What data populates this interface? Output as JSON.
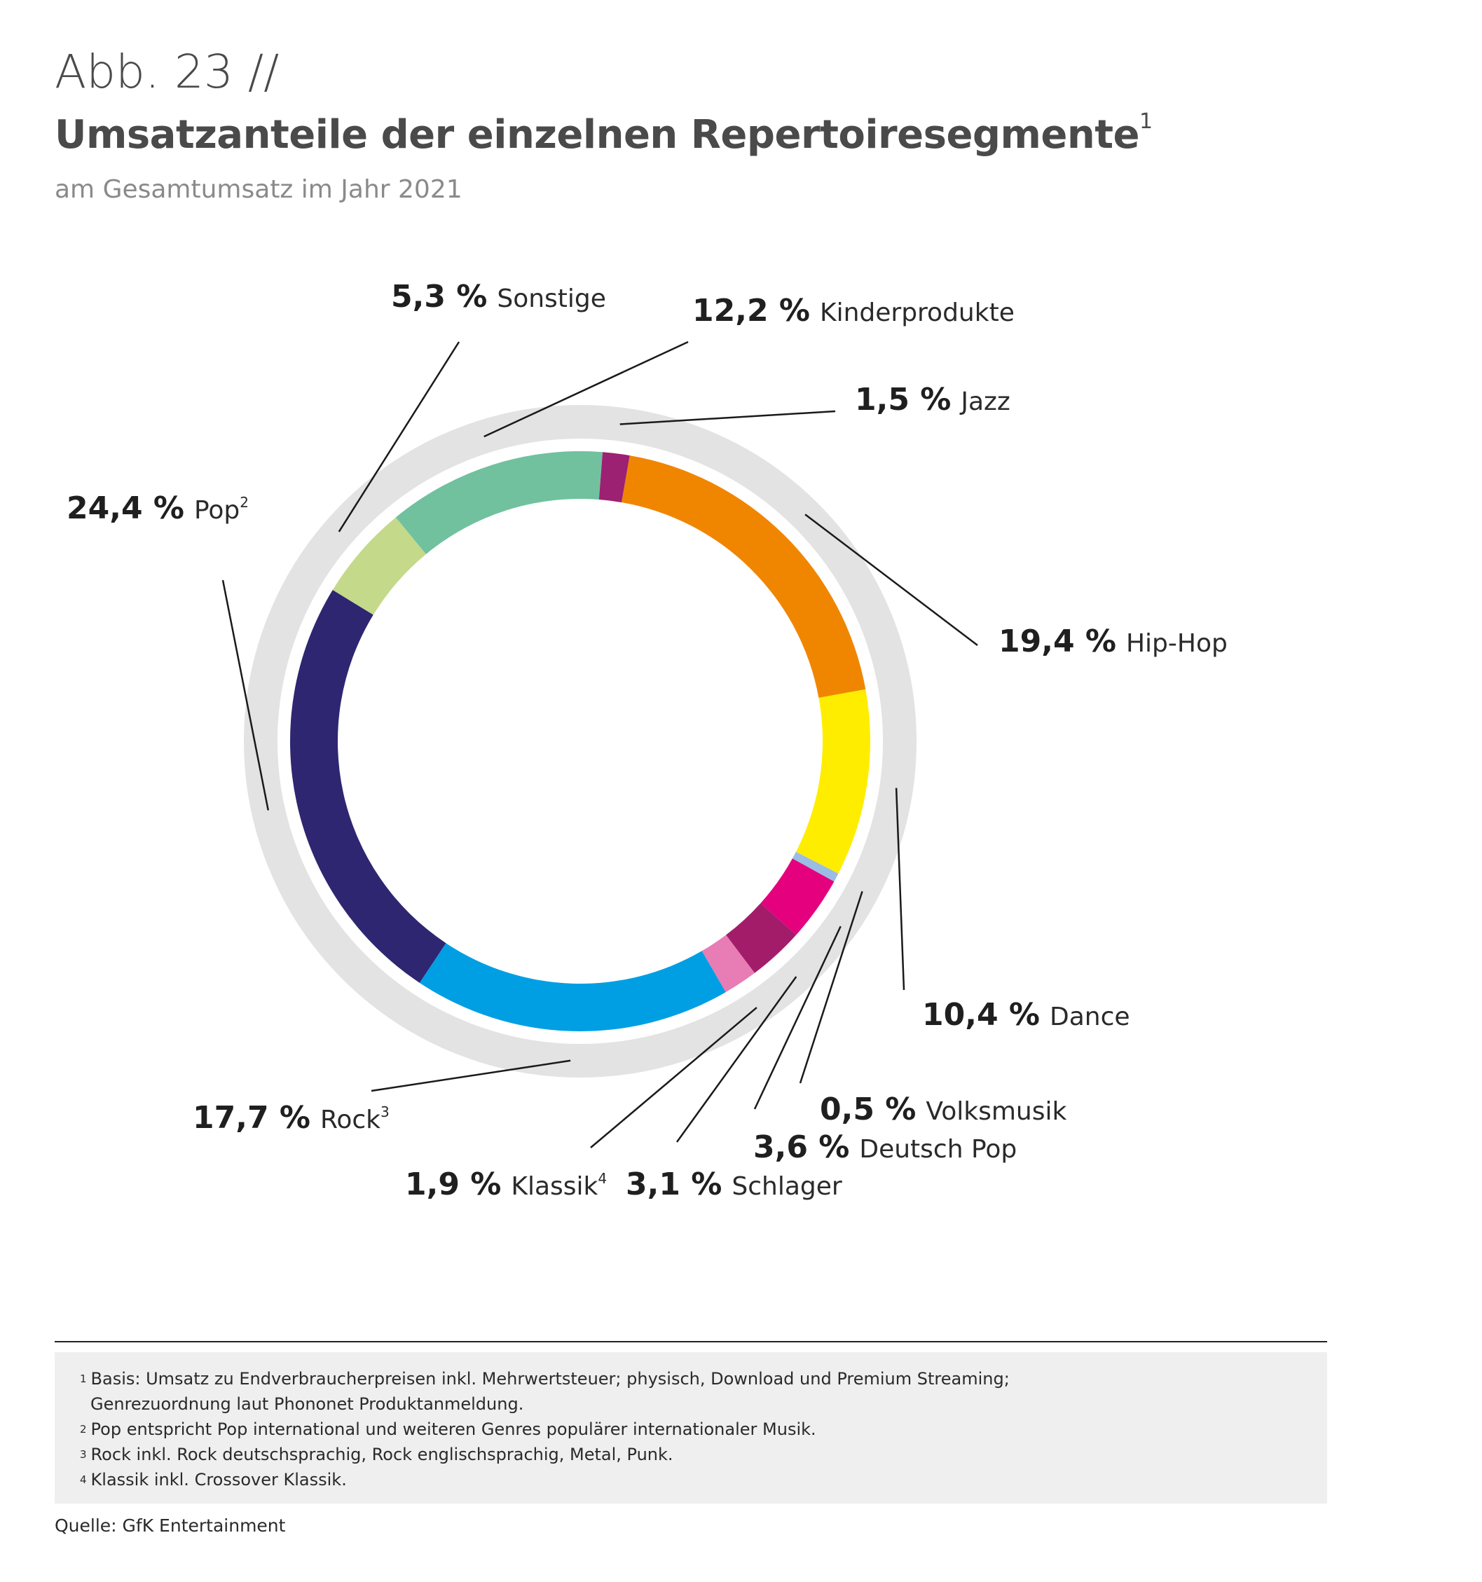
{
  "header": {
    "figure_label": "Abb. 23 //",
    "title": "Umsatzanteile der einzelnen Repertoiresegmente",
    "title_footnote": "1",
    "subtitle": "am Gesamtumsatz  im Jahr 2021"
  },
  "chart_data": {
    "type": "pie",
    "style": "donut",
    "title": "Umsatzanteile der einzelnen Repertoiresegmente",
    "subtitle": "am Gesamtumsatz  im Jahr 2021",
    "unit": "%",
    "slices": [
      {
        "name": "Pop",
        "footnote": "2",
        "value": 24.4,
        "label": "24,4 %",
        "color": "#2e2671"
      },
      {
        "name": "Sonstige",
        "footnote": "",
        "value": 5.3,
        "label": "5,3 %",
        "color": "#c5d98a"
      },
      {
        "name": "Kinderprodukte",
        "footnote": "",
        "value": 12.2,
        "label": "12,2 %",
        "color": "#71c19f"
      },
      {
        "name": "Jazz",
        "footnote": "",
        "value": 1.5,
        "label": "1,5 %",
        "color": "#9c2172"
      },
      {
        "name": "Hip-Hop",
        "footnote": "",
        "value": 19.4,
        "label": "19,4 %",
        "color": "#f08600"
      },
      {
        "name": "Dance",
        "footnote": "",
        "value": 10.4,
        "label": "10,4 %",
        "color": "#ffed00"
      },
      {
        "name": "Volksmusik",
        "footnote": "",
        "value": 0.5,
        "label": "0,5 %",
        "color": "#9bbde3"
      },
      {
        "name": "Deutsch Pop",
        "footnote": "",
        "value": 3.6,
        "label": "3,6 %",
        "color": "#e5007e"
      },
      {
        "name": "Schlager",
        "footnote": "",
        "value": 3.1,
        "label": "3,1 %",
        "color": "#a31c6a"
      },
      {
        "name": "Klassik",
        "footnote": "4",
        "value": 1.9,
        "label": "1,9 %",
        "color": "#e87cb4"
      },
      {
        "name": "Rock",
        "footnote": "3",
        "value": 17.7,
        "label": "17,7 %",
        "color": "#009fe3"
      }
    ],
    "colors": {
      "outer_ring": "#e3e3e3",
      "leader_line": "#1a1a1a"
    }
  },
  "footnotes": [
    {
      "num": "1",
      "lines": [
        "Basis: Umsatz zu Endverbraucherpreisen inkl. Mehrwertsteuer; physisch, Download und Premium Streaming;",
        "Genrezuordnung laut Phononet Produktanmeldung."
      ]
    },
    {
      "num": "2",
      "lines": [
        "Pop entspricht Pop international und weiteren Genres populärer internationaler Musik."
      ]
    },
    {
      "num": "3",
      "lines": [
        "Rock inkl. Rock deutschsprachig, Rock englischsprachig, Metal, Punk."
      ]
    },
    {
      "num": "4",
      "lines": [
        "Klassik inkl. Crossover Klassik."
      ]
    }
  ],
  "source": "Quelle: GfK Entertainment"
}
